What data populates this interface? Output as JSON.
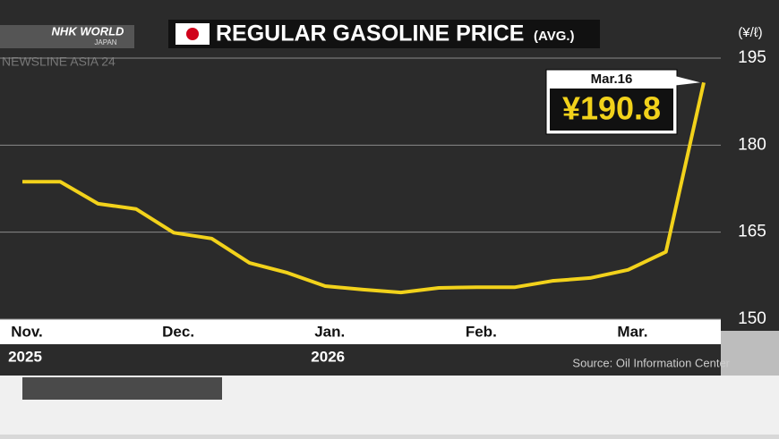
{
  "chart_data": {
    "type": "line",
    "title": "REGULAR GASOLINE PRICE",
    "title_suffix": "(AVG.)",
    "broadcaster": "NHK WORLD",
    "broadcaster_sub": "JAPAN",
    "program": "NEWSLINE ASIA 24",
    "unit_label": "(¥/ℓ)",
    "source": "Source: Oil Information Center",
    "categories": [
      "Nov.",
      null,
      null,
      null,
      "Dec.",
      null,
      null,
      null,
      "Jan.",
      null,
      null,
      null,
      "Feb.",
      null,
      null,
      null,
      "Mar.",
      null,
      null
    ],
    "year_labels": [
      "2025",
      null,
      null,
      null,
      null,
      null,
      null,
      null,
      "2026",
      null,
      null,
      null,
      null,
      null,
      null,
      null,
      null,
      null,
      null
    ],
    "series": [
      {
        "name": "Regular gasoline price",
        "color": "#f2d21b",
        "values": [
          173.7,
          173.7,
          169.9,
          169.0,
          164.9,
          163.9,
          159.7,
          158.0,
          155.7,
          155.1,
          154.6,
          155.4,
          155.5,
          155.5,
          156.6,
          157.1,
          158.5,
          161.6,
          190.8
        ],
        "value_labels": [
          null,
          null,
          null,
          null,
          null,
          null,
          null,
          null,
          null,
          null,
          null,
          null,
          null,
          null,
          null,
          null,
          null,
          null,
          "¥190.8"
        ]
      }
    ],
    "annotation_date": "Mar.16",
    "ylim": [
      150,
      195
    ],
    "yticks": [
      150,
      165,
      180,
      195
    ],
    "grid": true
  }
}
